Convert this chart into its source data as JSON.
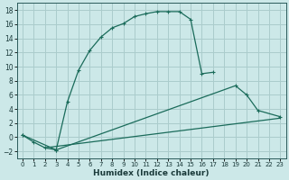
{
  "title": "",
  "xlabel": "Humidex (Indice chaleur)",
  "background_color": "#cce8e8",
  "grid_color": "#aacccc",
  "line_color": "#1a6b5a",
  "xlim": [
    -0.5,
    23.5
  ],
  "ylim": [
    -3.0,
    19.0
  ],
  "xticks": [
    0,
    1,
    2,
    3,
    4,
    5,
    6,
    7,
    8,
    9,
    10,
    11,
    12,
    13,
    14,
    15,
    16,
    17,
    18,
    19,
    20,
    21,
    22,
    23
  ],
  "yticks": [
    -2,
    0,
    2,
    4,
    6,
    8,
    10,
    12,
    14,
    16,
    18
  ],
  "curve1_x": [
    0,
    1,
    2,
    3,
    4,
    5,
    6,
    7,
    8,
    9,
    10,
    11,
    12,
    13,
    14,
    15,
    16,
    17
  ],
  "curve1_y": [
    0.3,
    -0.7,
    -1.5,
    -1.8,
    5.0,
    9.5,
    12.3,
    14.2,
    15.5,
    16.1,
    17.1,
    17.5,
    17.8,
    17.8,
    17.8,
    16.7,
    9.0,
    9.2
  ],
  "curve2_x": [
    0,
    3,
    19,
    20,
    21,
    23
  ],
  "curve2_y": [
    0.3,
    -1.8,
    7.3,
    6.0,
    3.8,
    2.9
  ],
  "curve3_x": [
    2,
    23
  ],
  "curve3_y": [
    -1.5,
    2.7
  ],
  "xlabel_fontsize": 6.5,
  "tick_fontsize_x": 5.0,
  "tick_fontsize_y": 5.5
}
